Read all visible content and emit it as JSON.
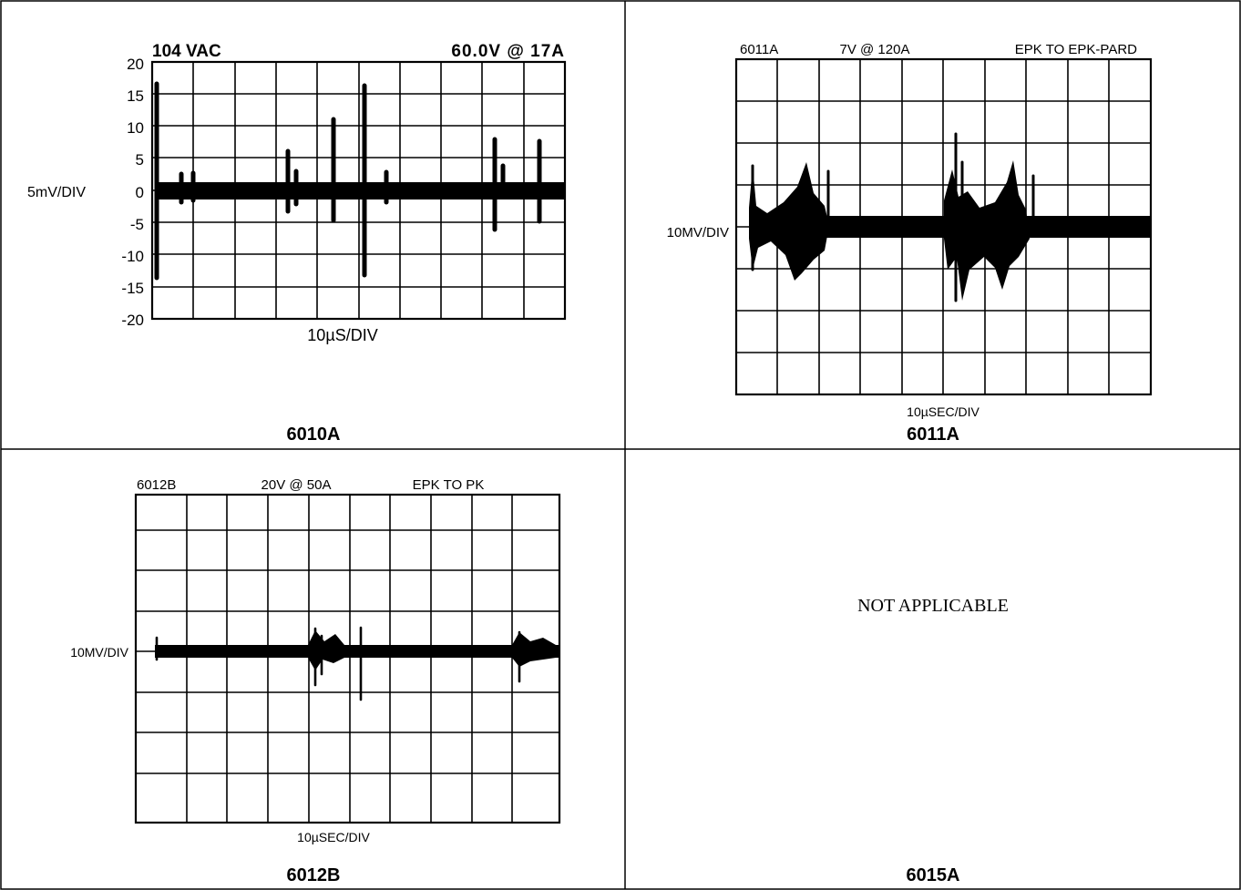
{
  "panels": {
    "p6010a": {
      "caption": "6010A",
      "header_left": "104 VAC",
      "header_right": "60.0V @ 17A",
      "y_scale_label": "5mV/DIV",
      "y_ticks": [
        "20",
        "15",
        "10",
        "5",
        "0",
        "-5",
        "-10",
        "-15",
        "-20"
      ],
      "x_scale_label": "10µS/DIV"
    },
    "p6011a": {
      "caption": "6011A",
      "header_model": "6011A",
      "header_condition": "7V @ 120A",
      "header_mode": "EPK TO EPK-PARD",
      "y_scale_label": "10MV/DIV",
      "x_scale_label": "10µSEC/DIV"
    },
    "p6012b": {
      "caption": "6012B",
      "header_model": "6012B",
      "header_condition": "20V @ 50A",
      "header_mode": "EPK TO PK",
      "y_scale_label": "10MV/DIV",
      "x_scale_label": "10µSEC/DIV"
    },
    "p6015a": {
      "caption": "6015A",
      "note": "NOT APPLICABLE"
    }
  }
}
